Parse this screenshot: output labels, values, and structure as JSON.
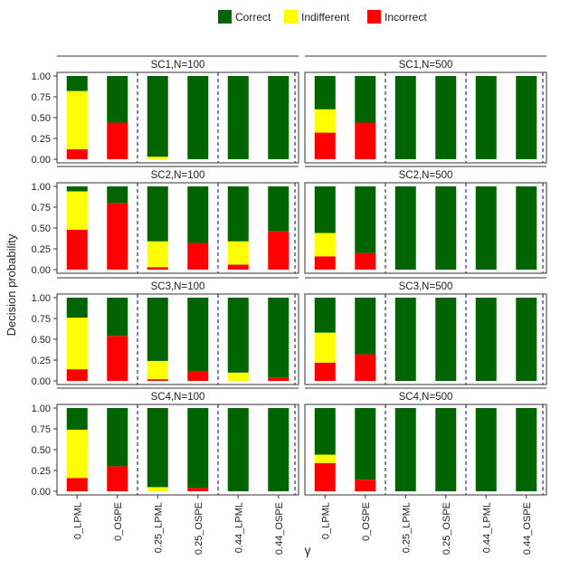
{
  "chart_data": {
    "type": "bar",
    "stacked": true,
    "ylabel": "Decision probability",
    "xlabel": "γ",
    "ylim": [
      0,
      1
    ],
    "yticks": [
      "0.00",
      "0.25",
      "0.50",
      "0.75",
      "1.00"
    ],
    "categories": [
      "0_LPML",
      "0_OSPE",
      "0.25_LPML",
      "0.25_OSPE",
      "0.44_LPML",
      "0.44_OSPE"
    ],
    "legend": [
      {
        "name": "Correct",
        "color": "#006400"
      },
      {
        "name": "Indifferent",
        "color": "#ffff00"
      },
      {
        "name": "Incorrect",
        "color": "#ff0000"
      }
    ],
    "panels": [
      {
        "title": "SC1,N=100",
        "incorrect": [
          0.12,
          0.44,
          0.0,
          0.0,
          0.0,
          0.0
        ],
        "indifferent": [
          0.7,
          0.0,
          0.03,
          0.0,
          0.0,
          0.0
        ],
        "correct": [
          0.18,
          0.56,
          0.97,
          1.0,
          1.0,
          1.0
        ]
      },
      {
        "title": "SC1,N=500",
        "incorrect": [
          0.32,
          0.44,
          0.0,
          0.0,
          0.0,
          0.0
        ],
        "indifferent": [
          0.28,
          0.0,
          0.0,
          0.0,
          0.0,
          0.0
        ],
        "correct": [
          0.4,
          0.56,
          1.0,
          1.0,
          1.0,
          1.0
        ]
      },
      {
        "title": "SC2,N=100",
        "incorrect": [
          0.48,
          0.8,
          0.03,
          0.32,
          0.06,
          0.46
        ],
        "indifferent": [
          0.46,
          0.0,
          0.31,
          0.0,
          0.28,
          0.0
        ],
        "correct": [
          0.06,
          0.2,
          0.66,
          0.68,
          0.66,
          0.54
        ]
      },
      {
        "title": "SC2,N=500",
        "incorrect": [
          0.16,
          0.2,
          0.0,
          0.0,
          0.0,
          0.0
        ],
        "indifferent": [
          0.28,
          0.0,
          0.0,
          0.0,
          0.0,
          0.0
        ],
        "correct": [
          0.56,
          0.8,
          1.0,
          1.0,
          1.0,
          1.0
        ]
      },
      {
        "title": "SC3,N=100",
        "incorrect": [
          0.14,
          0.54,
          0.02,
          0.12,
          0.0,
          0.04
        ],
        "indifferent": [
          0.62,
          0.0,
          0.22,
          0.0,
          0.1,
          0.0
        ],
        "correct": [
          0.24,
          0.46,
          0.76,
          0.88,
          0.9,
          0.96
        ]
      },
      {
        "title": "SC3,N=500",
        "incorrect": [
          0.22,
          0.32,
          0.0,
          0.0,
          0.0,
          0.0
        ],
        "indifferent": [
          0.36,
          0.0,
          0.0,
          0.0,
          0.0,
          0.0
        ],
        "correct": [
          0.42,
          0.68,
          1.0,
          1.0,
          1.0,
          1.0
        ]
      },
      {
        "title": "SC4,N=100",
        "incorrect": [
          0.16,
          0.3,
          0.0,
          0.04,
          0.0,
          0.0
        ],
        "indifferent": [
          0.58,
          0.0,
          0.05,
          0.0,
          0.0,
          0.0
        ],
        "correct": [
          0.26,
          0.7,
          0.95,
          0.96,
          1.0,
          1.0
        ]
      },
      {
        "title": "SC4,N=500",
        "incorrect": [
          0.34,
          0.14,
          0.0,
          0.0,
          0.0,
          0.0
        ],
        "indifferent": [
          0.1,
          0.0,
          0.0,
          0.0,
          0.0,
          0.0
        ],
        "correct": [
          0.56,
          0.86,
          1.0,
          1.0,
          1.0,
          1.0
        ]
      }
    ]
  }
}
